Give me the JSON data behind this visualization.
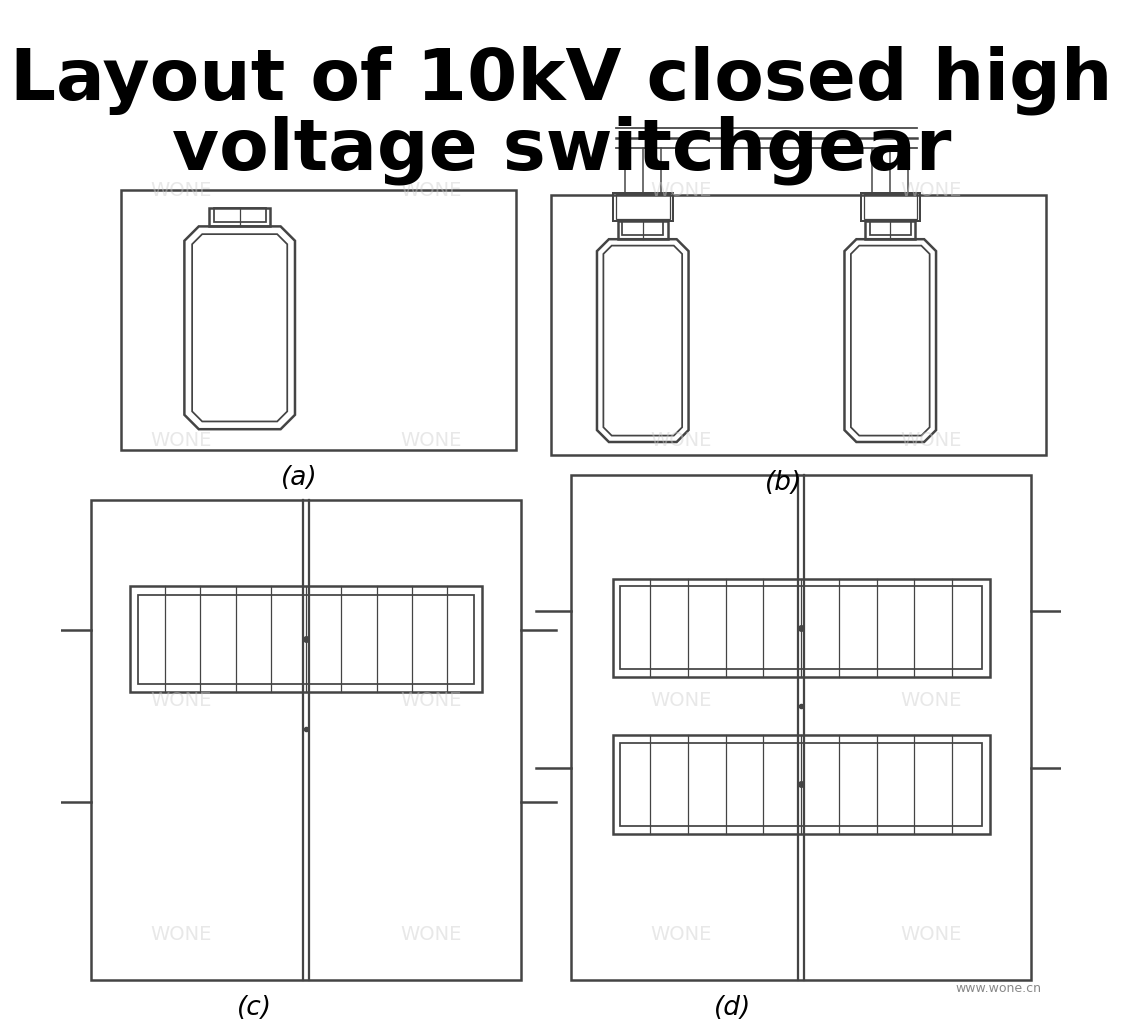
{
  "title_line1": "Layout of 10kV closed high",
  "title_line2": "voltage switchgear",
  "title_fontsize": 52,
  "title_fontweight": "bold",
  "bg_color": "#ffffff",
  "line_color": "#444444",
  "watermark_color": "#cccccc",
  "watermark_text": "WONE",
  "watermark_alpha": 0.45,
  "sub_labels": [
    "(a)",
    "(b)",
    "(c)",
    "(d)"
  ],
  "label_fontsize": 16,
  "website_text": "www.wone.cn",
  "website_fontsize": 9
}
